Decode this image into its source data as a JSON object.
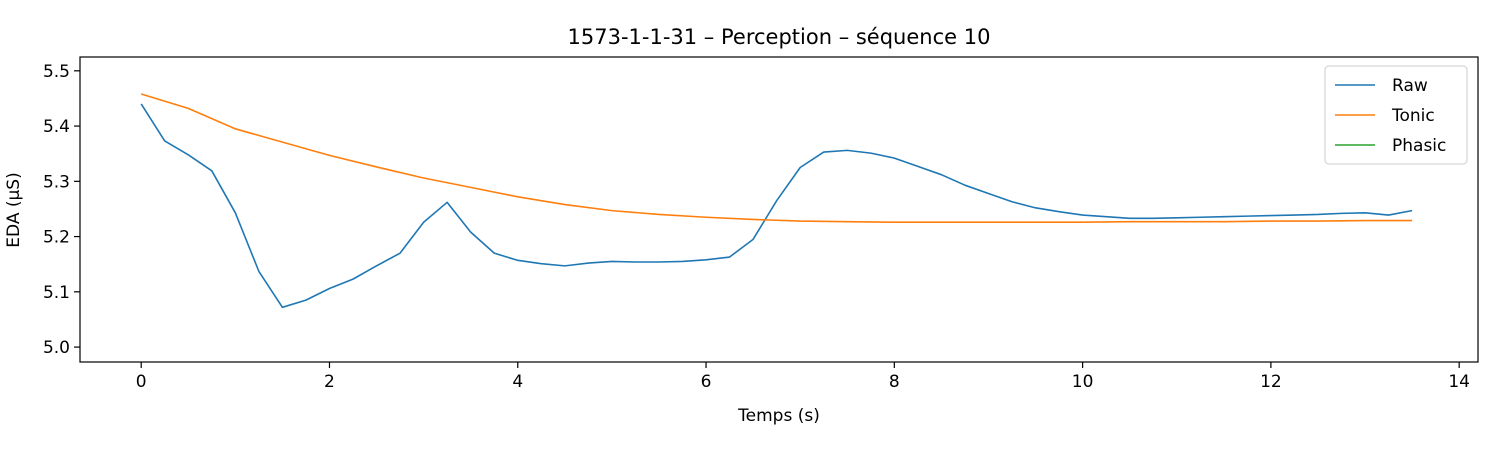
{
  "chart_data": {
    "type": "line",
    "title": "1573-1-1-31 – Perception – séquence 10",
    "xlabel": "Temps (s)",
    "ylabel": "EDA (µS)",
    "xlim": [
      -0.65,
      14.2
    ],
    "ylim": [
      4.973,
      5.525
    ],
    "xticks": [
      0,
      2,
      4,
      6,
      8,
      10,
      12,
      14
    ],
    "yticks": [
      5.0,
      5.1,
      5.2,
      5.3,
      5.4,
      5.5
    ],
    "xtick_labels": [
      "0",
      "2",
      "4",
      "6",
      "8",
      "10",
      "12",
      "14"
    ],
    "ytick_labels": [
      "5.0",
      "5.1",
      "5.2",
      "5.3",
      "5.4",
      "5.5"
    ],
    "grid": false,
    "legend_position": "top-right",
    "series": [
      {
        "name": "Raw",
        "color": "#1f77b4",
        "x": [
          0,
          0.25,
          0.5,
          0.75,
          1.0,
          1.25,
          1.5,
          1.75,
          2.0,
          2.25,
          2.5,
          2.75,
          3.0,
          3.25,
          3.5,
          3.75,
          4.0,
          4.25,
          4.5,
          4.75,
          5.0,
          5.25,
          5.5,
          5.75,
          6.0,
          6.25,
          6.5,
          6.75,
          7.0,
          7.25,
          7.5,
          7.75,
          8.0,
          8.25,
          8.5,
          8.75,
          9.0,
          9.25,
          9.5,
          9.75,
          10.0,
          10.25,
          10.5,
          10.75,
          11.0,
          11.25,
          11.5,
          11.75,
          12.0,
          12.25,
          12.5,
          12.75,
          13.0,
          13.25,
          13.5
        ],
        "y": [
          5.44,
          5.373,
          5.348,
          5.319,
          5.243,
          5.137,
          5.072,
          5.085,
          5.106,
          5.123,
          5.147,
          5.17,
          5.226,
          5.262,
          5.208,
          5.17,
          5.157,
          5.151,
          5.147,
          5.152,
          5.155,
          5.154,
          5.154,
          5.155,
          5.158,
          5.163,
          5.195,
          5.265,
          5.325,
          5.353,
          5.356,
          5.351,
          5.342,
          5.327,
          5.312,
          5.293,
          5.278,
          5.263,
          5.252,
          5.245,
          5.239,
          5.236,
          5.233,
          5.233,
          5.234,
          5.235,
          5.236,
          5.237,
          5.238,
          5.239,
          5.24,
          5.242,
          5.243,
          5.239,
          5.247
        ]
      },
      {
        "name": "Tonic",
        "color": "#ff7f0e",
        "x": [
          0,
          0.5,
          1.0,
          1.5,
          2.0,
          2.5,
          3.0,
          3.5,
          4.0,
          4.5,
          5.0,
          5.5,
          6.0,
          6.5,
          7.0,
          7.5,
          8.0,
          8.5,
          9.0,
          9.5,
          10.0,
          10.5,
          11.0,
          11.5,
          12.0,
          12.5,
          13.0,
          13.5
        ],
        "y": [
          5.458,
          5.432,
          5.395,
          5.371,
          5.347,
          5.326,
          5.306,
          5.289,
          5.272,
          5.258,
          5.247,
          5.24,
          5.235,
          5.231,
          5.228,
          5.227,
          5.226,
          5.226,
          5.226,
          5.226,
          5.226,
          5.227,
          5.227,
          5.227,
          5.228,
          5.228,
          5.229,
          5.229
        ]
      },
      {
        "name": "Phasic",
        "color": "#2ca02c",
        "x": [],
        "y": []
      }
    ]
  }
}
